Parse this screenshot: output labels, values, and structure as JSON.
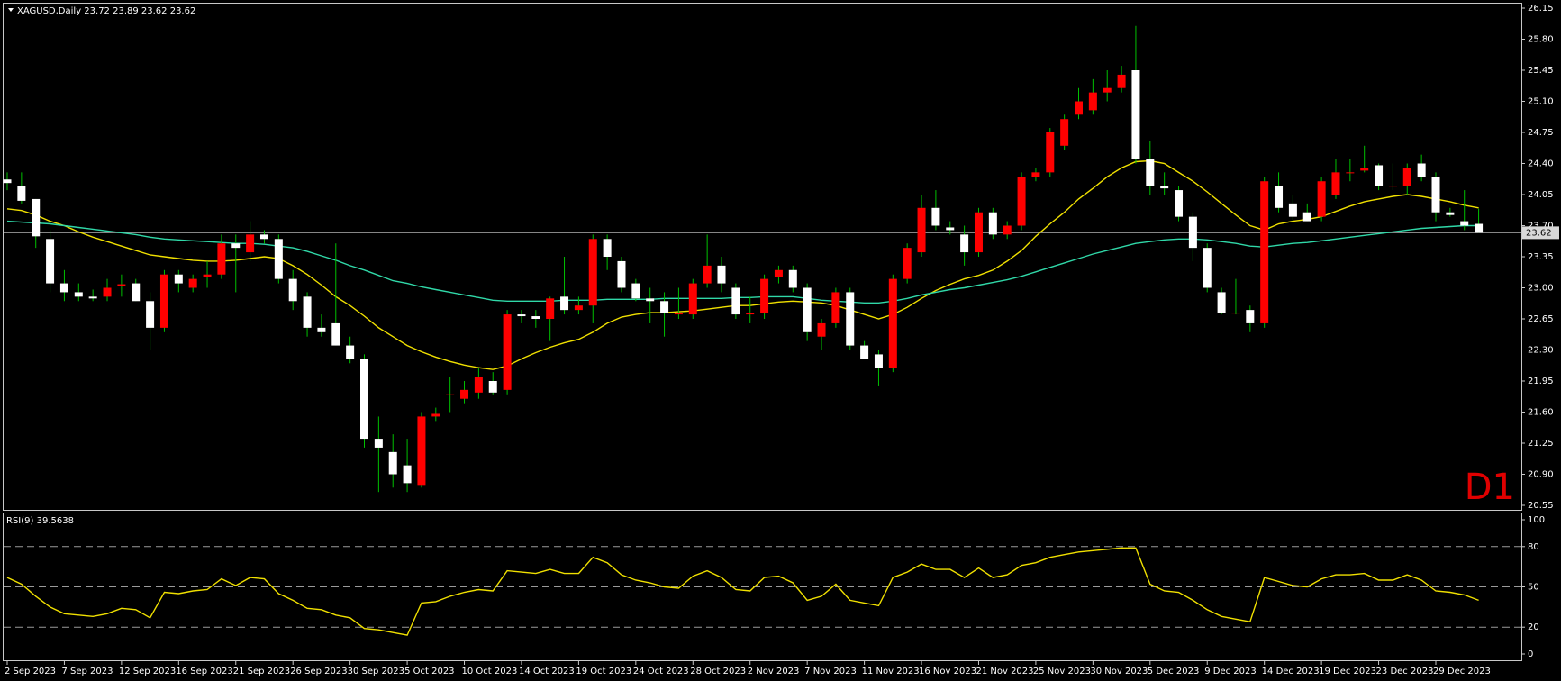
{
  "chart_data": [
    {
      "type": "candlestick",
      "title": "XAGUSD,Daily  23.72 23.89 23.62 23.62",
      "period_label": "D1",
      "categories": [
        "2 Sep 2023",
        null,
        null,
        null,
        "7 Sep 2023",
        null,
        null,
        null,
        "12 Sep 2023",
        null,
        null,
        null,
        "16 Sep 2023",
        null,
        null,
        null,
        "21 Sep 2023",
        null,
        null,
        null,
        "26 Sep 2023",
        null,
        null,
        null,
        "30 Sep 2023",
        null,
        null,
        null,
        "5 Oct 2023",
        null,
        null,
        null,
        "10 Oct 2023",
        null,
        null,
        null,
        "14 Oct 2023",
        null,
        null,
        null,
        "19 Oct 2023",
        null,
        null,
        null,
        "24 Oct 2023",
        null,
        null,
        null,
        "28 Oct 2023",
        null,
        null,
        null,
        "2 Nov 2023",
        null,
        null,
        null,
        "7 Nov 2023",
        null,
        null,
        null,
        "11 Nov 2023",
        null,
        null,
        null,
        "16 Nov 2023",
        null,
        null,
        null,
        "21 Nov 2023",
        null,
        null,
        null,
        "25 Nov 2023",
        null,
        null,
        null,
        "30 Nov 2023",
        null,
        null,
        null,
        "5 Dec 2023",
        null,
        null,
        null,
        "9 Dec 2023",
        null,
        null,
        null,
        "14 Dec 2023",
        null,
        null,
        null,
        "19 Dec 2023",
        null,
        null,
        null,
        "23 Dec 2023",
        null,
        null,
        null,
        "29 Dec 2023",
        null,
        null,
        null
      ],
      "open": [
        24.22,
        24.15,
        24.0,
        23.55,
        23.05,
        22.95,
        22.9,
        22.9,
        23.02,
        23.05,
        22.85,
        22.55,
        23.15,
        23.0,
        23.12,
        23.15,
        23.5,
        23.4,
        23.6,
        23.55,
        23.1,
        22.9,
        22.55,
        22.6,
        22.35,
        22.2,
        21.3,
        21.15,
        21.0,
        20.78,
        21.55,
        21.8,
        21.75,
        21.82,
        21.95,
        21.85,
        22.7,
        22.68,
        22.65,
        22.9,
        22.75,
        22.8,
        23.55,
        23.3,
        23.05,
        22.88,
        22.85,
        22.7,
        22.7,
        23.05,
        23.25,
        23.0,
        22.7,
        22.72,
        23.12,
        23.2,
        23.0,
        22.45,
        22.6,
        22.95,
        22.35,
        22.25,
        22.1,
        23.1,
        23.4,
        23.9,
        23.68,
        23.6,
        23.4,
        23.85,
        23.6,
        23.7,
        24.25,
        24.3,
        24.6,
        24.95,
        25.0,
        25.2,
        25.25,
        25.45,
        24.45,
        24.15,
        24.1,
        23.8,
        23.45,
        22.95,
        22.72,
        22.75,
        22.6,
        24.15,
        23.95,
        23.85,
        23.8,
        24.05,
        24.3,
        24.32,
        24.38,
        24.15,
        24.15,
        24.4,
        24.25,
        23.85,
        23.75,
        23.72
      ],
      "high": [
        24.3,
        24.3,
        24.0,
        23.65,
        23.2,
        23.05,
        22.98,
        23.1,
        23.15,
        23.1,
        22.95,
        23.2,
        23.2,
        23.15,
        23.3,
        23.6,
        23.6,
        23.75,
        23.65,
        23.6,
        23.2,
        22.95,
        22.7,
        23.5,
        22.45,
        22.25,
        21.55,
        21.35,
        21.3,
        21.6,
        21.65,
        22.0,
        21.95,
        22.1,
        22.05,
        22.75,
        22.75,
        22.75,
        22.9,
        23.35,
        22.9,
        23.6,
        23.6,
        23.35,
        23.1,
        23.0,
        22.95,
        23.0,
        23.1,
        23.6,
        23.35,
        23.05,
        22.9,
        23.15,
        23.25,
        23.25,
        23.05,
        22.65,
        23.0,
        23.0,
        22.4,
        22.3,
        23.15,
        23.5,
        24.05,
        24.1,
        23.75,
        23.7,
        23.9,
        23.9,
        23.75,
        24.3,
        24.35,
        24.8,
        24.95,
        25.25,
        25.35,
        25.45,
        25.5,
        25.95,
        24.65,
        24.3,
        24.15,
        23.85,
        23.5,
        23.0,
        23.1,
        22.8,
        24.25,
        24.3,
        24.05,
        23.95,
        24.25,
        24.45,
        24.45,
        24.6,
        24.4,
        24.4,
        24.4,
        24.5,
        24.3,
        23.9,
        24.1,
        23.89
      ],
      "low": [
        24.1,
        23.95,
        23.45,
        22.95,
        22.85,
        22.85,
        22.85,
        22.85,
        22.9,
        22.85,
        22.3,
        22.5,
        22.95,
        22.95,
        23.0,
        23.1,
        22.95,
        23.3,
        23.5,
        23.05,
        22.75,
        22.45,
        22.45,
        22.35,
        22.15,
        21.2,
        20.7,
        20.75,
        20.7,
        20.75,
        21.5,
        21.6,
        21.7,
        21.75,
        21.8,
        21.8,
        22.6,
        22.55,
        22.4,
        22.7,
        22.7,
        22.6,
        23.2,
        22.95,
        22.85,
        22.6,
        22.45,
        22.65,
        22.65,
        23.0,
        22.95,
        22.65,
        22.6,
        22.65,
        23.05,
        22.95,
        22.4,
        22.3,
        22.55,
        22.3,
        22.2,
        21.9,
        22.05,
        23.05,
        23.35,
        23.65,
        23.6,
        23.25,
        23.35,
        23.55,
        23.55,
        23.65,
        24.2,
        24.25,
        24.55,
        24.9,
        24.95,
        25.1,
        25.2,
        24.4,
        24.05,
        24.05,
        23.75,
        23.3,
        22.95,
        22.7,
        22.7,
        22.5,
        22.55,
        23.85,
        23.75,
        23.75,
        23.75,
        24.0,
        24.2,
        24.3,
        24.1,
        24.1,
        24.05,
        24.2,
        23.75,
        23.8,
        23.65,
        23.62
      ],
      "close": [
        24.18,
        23.98,
        23.58,
        23.05,
        22.95,
        22.9,
        22.88,
        23.0,
        23.04,
        22.85,
        22.55,
        23.15,
        23.05,
        23.1,
        23.15,
        23.5,
        23.45,
        23.6,
        23.55,
        23.1,
        22.85,
        22.55,
        22.5,
        22.35,
        22.2,
        21.3,
        21.2,
        20.9,
        20.8,
        21.55,
        21.58,
        21.8,
        21.85,
        22.0,
        21.82,
        22.7,
        22.68,
        22.65,
        22.88,
        22.75,
        22.8,
        23.55,
        23.35,
        23.0,
        22.88,
        22.85,
        22.72,
        22.72,
        23.05,
        23.25,
        23.05,
        22.7,
        22.72,
        23.1,
        23.2,
        23.0,
        22.5,
        22.6,
        22.95,
        22.35,
        22.2,
        22.1,
        23.1,
        23.45,
        23.9,
        23.7,
        23.65,
        23.4,
        23.85,
        23.6,
        23.7,
        24.25,
        24.3,
        24.75,
        24.9,
        25.1,
        25.2,
        25.25,
        25.4,
        24.45,
        24.15,
        24.12,
        23.8,
        23.45,
        23.0,
        22.72,
        22.72,
        22.6,
        24.2,
        23.9,
        23.8,
        23.75,
        24.2,
        24.3,
        24.3,
        24.35,
        24.15,
        24.15,
        24.35,
        24.25,
        23.85,
        23.82,
        23.7,
        23.62
      ],
      "up_color": "#ff0000",
      "down_color": "#ffffff",
      "wick_color": "#00c000",
      "series": [
        {
          "color": "#f0e000",
          "values": [
            23.89,
            23.87,
            23.82,
            23.75,
            23.7,
            23.63,
            23.57,
            23.52,
            23.47,
            23.42,
            23.37,
            23.35,
            23.33,
            23.31,
            23.3,
            23.3,
            23.31,
            23.33,
            23.35,
            23.33,
            23.25,
            23.15,
            23.03,
            22.9,
            22.8,
            22.68,
            22.55,
            22.45,
            22.35,
            22.28,
            22.22,
            22.17,
            22.13,
            22.1,
            22.08,
            22.12,
            22.2,
            22.27,
            22.33,
            22.38,
            22.42,
            22.5,
            22.6,
            22.67,
            22.7,
            22.72,
            22.72,
            22.73,
            22.74,
            22.76,
            22.78,
            22.8,
            22.8,
            22.82,
            22.84,
            22.85,
            22.84,
            22.83,
            22.8,
            22.75,
            22.7,
            22.65,
            22.7,
            22.78,
            22.88,
            22.97,
            23.04,
            23.1,
            23.14,
            23.2,
            23.3,
            23.42,
            23.58,
            23.72,
            23.85,
            24.0,
            24.12,
            24.25,
            24.35,
            24.42,
            24.43,
            24.4,
            24.3,
            24.2,
            24.08,
            23.95,
            23.82,
            23.7,
            23.65,
            23.72,
            23.75,
            23.77,
            23.8,
            23.86,
            23.92,
            23.97,
            24.0,
            24.03,
            24.05,
            24.03,
            24.0,
            23.97,
            23.93,
            23.9
          ]
        },
        {
          "color": "#30d8a8",
          "values": [
            23.75,
            23.74,
            23.73,
            23.72,
            23.7,
            23.68,
            23.66,
            23.64,
            23.62,
            23.6,
            23.57,
            23.55,
            23.54,
            23.53,
            23.52,
            23.51,
            23.5,
            23.5,
            23.49,
            23.47,
            23.45,
            23.41,
            23.36,
            23.31,
            23.25,
            23.2,
            23.14,
            23.08,
            23.05,
            23.01,
            22.98,
            22.95,
            22.92,
            22.89,
            22.86,
            22.85,
            22.85,
            22.85,
            22.85,
            22.86,
            22.86,
            22.86,
            22.87,
            22.87,
            22.87,
            22.87,
            22.88,
            22.88,
            22.88,
            22.88,
            22.88,
            22.89,
            22.89,
            22.9,
            22.9,
            22.9,
            22.88,
            22.86,
            22.85,
            22.84,
            22.83,
            22.83,
            22.85,
            22.88,
            22.92,
            22.95,
            22.98,
            23.0,
            23.03,
            23.06,
            23.09,
            23.13,
            23.18,
            23.23,
            23.28,
            23.33,
            23.38,
            23.42,
            23.46,
            23.5,
            23.52,
            23.54,
            23.55,
            23.55,
            23.54,
            23.52,
            23.5,
            23.47,
            23.46,
            23.48,
            23.5,
            23.51,
            23.53,
            23.55,
            23.57,
            23.59,
            23.61,
            23.63,
            23.65,
            23.67,
            23.68,
            23.69,
            23.7,
            23.7
          ]
        }
      ],
      "last_price": 23.62,
      "ylim": [
        20.55,
        26.15
      ],
      "yticks": [
        26.15,
        {
          "value": 25.8,
          "label": "25.80"
        },
        25.45,
        {
          "value": 25.1,
          "label": "25.10"
        },
        24.75,
        {
          "value": 24.4,
          "label": "24.40"
        },
        24.05,
        {
          "value": 23.7,
          "label": "23.70"
        },
        23.35,
        {
          "value": 23.0,
          "label": "23.00"
        },
        22.65,
        {
          "value": 22.3,
          "label": "22.30"
        },
        21.95,
        {
          "value": 21.6,
          "label": "21.60"
        },
        21.25,
        {
          "value": 20.9,
          "label": "20.90"
        },
        20.55
      ]
    },
    {
      "type": "line",
      "title": "RSI(9) 39.5638",
      "color": "#f0e000",
      "values": [
        57,
        52,
        43,
        35,
        30,
        29,
        28,
        30,
        34,
        33,
        27,
        46,
        45,
        47,
        48,
        56,
        51,
        57,
        56,
        45,
        40,
        34,
        33,
        29,
        27,
        19,
        18,
        16,
        14,
        38,
        39,
        43,
        46,
        48,
        47,
        62,
        61,
        60,
        63,
        60,
        60,
        72,
        68,
        59,
        55,
        53,
        50,
        49,
        58,
        62,
        57,
        48,
        47,
        57,
        58,
        53,
        40,
        43,
        52,
        40,
        38,
        36,
        57,
        61,
        67,
        63,
        63,
        57,
        64,
        57,
        59,
        66,
        68,
        72,
        74,
        76,
        77,
        78,
        79,
        79,
        52,
        47,
        46,
        40,
        33,
        28,
        26,
        24,
        57,
        54,
        51,
        50,
        56,
        59,
        59,
        60,
        55,
        55,
        59,
        55,
        47,
        46,
        44,
        40
      ],
      "ylim": [
        0,
        100
      ],
      "yticks": [
        100,
        80,
        50,
        20,
        0
      ],
      "levels": [
        80,
        50,
        20
      ]
    }
  ]
}
